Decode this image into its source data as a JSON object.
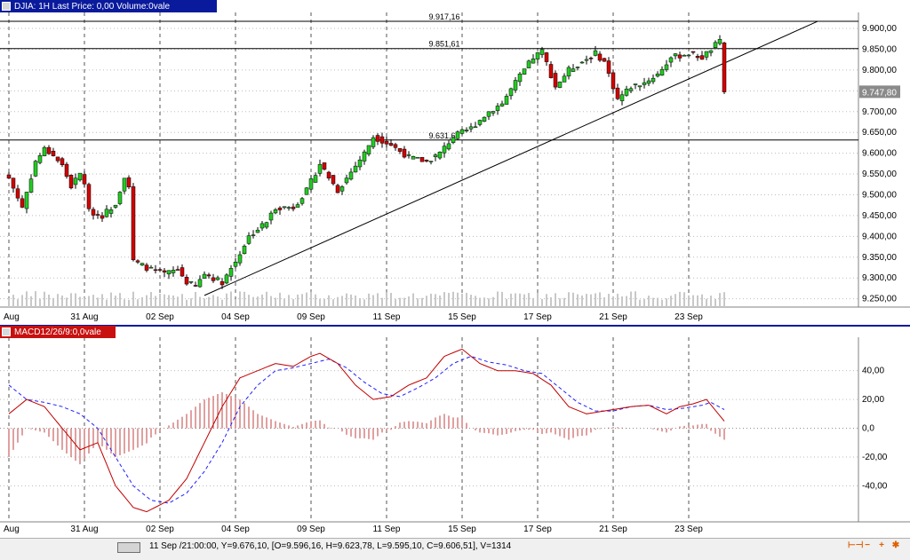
{
  "main_panel": {
    "title": "DJIA: 1H Last Price: 0,00 Volume:0vale"
  },
  "macd_panel": {
    "title": "MACD12/26/9:0,0vale"
  },
  "status": {
    "text": "11 Sep /21:00:00, Y=9.676,10, [O=9.596,16, H=9.623,78, L=9.595,10, C=9.606,51], V=1314"
  },
  "status_buttons": [
    {
      "icon": "zoom-out-icon",
      "glyph": "⊢⊣"
    },
    {
      "icon": "minus-icon",
      "glyph": "−"
    },
    {
      "icon": "plus-icon",
      "glyph": "+"
    },
    {
      "icon": "gear-icon",
      "glyph": "✱"
    }
  ],
  "chart_data": [
    {
      "type": "candlestick",
      "ylim": [
        9230,
        9930
      ],
      "yticks": [
        "9.900,00",
        "9.850,00",
        "9.800,00",
        "9.750,00",
        "9.700,00",
        "9.650,00",
        "9.600,00",
        "9.550,00",
        "9.500,00",
        "9.450,00",
        "9.400,00",
        "9.350,00",
        "9.300,00",
        "9.250,00"
      ],
      "ytick_values": [
        9900,
        9850,
        9800,
        9750,
        9700,
        9650,
        9600,
        9550,
        9500,
        9450,
        9400,
        9350,
        9300,
        9250
      ],
      "xticks": [
        "Aug",
        "31 Aug",
        "02 Sep",
        "04 Sep",
        "09 Sep",
        "11 Sep",
        "15 Sep",
        "17 Sep",
        "21 Sep",
        "23 Sep"
      ],
      "xtick_index": [
        0,
        17,
        34,
        51,
        68,
        85,
        102,
        119,
        136,
        153
      ],
      "n_bars": 162,
      "last_price_label": "9.747,80",
      "last_price": 9747.8,
      "horizontal_levels": [
        {
          "value": 9917.16,
          "label": "9.917,16"
        },
        {
          "value": 9851.61,
          "label": "9.851,61"
        },
        {
          "value": 9631.69,
          "label": "9.631,69"
        }
      ],
      "trendline": {
        "from": {
          "bar": 44,
          "value": 9258
        },
        "to": {
          "bar": 182,
          "value": 9917
        }
      },
      "close_anchors": [
        [
          0,
          9540
        ],
        [
          3,
          9470
        ],
        [
          6,
          9580
        ],
        [
          8,
          9610
        ],
        [
          10,
          9595
        ],
        [
          12,
          9570
        ],
        [
          14,
          9520
        ],
        [
          16,
          9550
        ],
        [
          17,
          9530
        ],
        [
          18,
          9460
        ],
        [
          21,
          9450
        ],
        [
          24,
          9480
        ],
        [
          26,
          9545
        ],
        [
          27,
          9520
        ],
        [
          28,
          9340
        ],
        [
          32,
          9320
        ],
        [
          35,
          9310
        ],
        [
          38,
          9320
        ],
        [
          40,
          9290
        ],
        [
          42,
          9280
        ],
        [
          44,
          9310
        ],
        [
          48,
          9290
        ],
        [
          51,
          9340
        ],
        [
          54,
          9400
        ],
        [
          58,
          9435
        ],
        [
          60,
          9470
        ],
        [
          64,
          9470
        ],
        [
          67,
          9510
        ],
        [
          70,
          9575
        ],
        [
          74,
          9510
        ],
        [
          78,
          9570
        ],
        [
          80,
          9600
        ],
        [
          82,
          9640
        ],
        [
          86,
          9620
        ],
        [
          90,
          9590
        ],
        [
          94,
          9580
        ],
        [
          97,
          9600
        ],
        [
          100,
          9640
        ],
        [
          104,
          9660
        ],
        [
          108,
          9700
        ],
        [
          111,
          9720
        ],
        [
          114,
          9770
        ],
        [
          118,
          9830
        ],
        [
          120,
          9845
        ],
        [
          123,
          9760
        ],
        [
          126,
          9800
        ],
        [
          129,
          9820
        ],
        [
          132,
          9840
        ],
        [
          134,
          9820
        ],
        [
          137,
          9730
        ],
        [
          140,
          9760
        ],
        [
          143,
          9770
        ],
        [
          146,
          9790
        ],
        [
          149,
          9830
        ],
        [
          153,
          9840
        ],
        [
          156,
          9830
        ],
        [
          159,
          9860
        ],
        [
          160,
          9868
        ],
        [
          161,
          9748
        ]
      ]
    },
    {
      "type": "line",
      "name": "MACD",
      "ylim": [
        -65,
        62
      ],
      "yticks": [
        "40,00",
        "20,00",
        "0,0",
        "-20,00",
        "-40,00"
      ],
      "ytick_values": [
        40,
        20,
        0,
        -20,
        -40
      ],
      "macd_anchors": [
        [
          0,
          10
        ],
        [
          4,
          20
        ],
        [
          8,
          15
        ],
        [
          12,
          0
        ],
        [
          16,
          -15
        ],
        [
          20,
          -10
        ],
        [
          24,
          -40
        ],
        [
          28,
          -55
        ],
        [
          31,
          -58
        ],
        [
          36,
          -50
        ],
        [
          40,
          -35
        ],
        [
          44,
          -10
        ],
        [
          48,
          15
        ],
        [
          52,
          35
        ],
        [
          56,
          40
        ],
        [
          60,
          45
        ],
        [
          64,
          43
        ],
        [
          68,
          50
        ],
        [
          70,
          52
        ],
        [
          74,
          45
        ],
        [
          78,
          30
        ],
        [
          82,
          20
        ],
        [
          86,
          22
        ],
        [
          90,
          30
        ],
        [
          94,
          35
        ],
        [
          98,
          50
        ],
        [
          102,
          55
        ],
        [
          106,
          45
        ],
        [
          110,
          40
        ],
        [
          114,
          40
        ],
        [
          118,
          38
        ],
        [
          122,
          30
        ],
        [
          126,
          15
        ],
        [
          130,
          10
        ],
        [
          134,
          12
        ],
        [
          136,
          13
        ],
        [
          140,
          15
        ],
        [
          144,
          16
        ],
        [
          148,
          10
        ],
        [
          151,
          15
        ],
        [
          154,
          17
        ],
        [
          157,
          20
        ],
        [
          161,
          5
        ]
      ],
      "signal_anchors": [
        [
          0,
          30
        ],
        [
          4,
          20
        ],
        [
          8,
          18
        ],
        [
          12,
          15
        ],
        [
          16,
          10
        ],
        [
          20,
          0
        ],
        [
          24,
          -20
        ],
        [
          28,
          -40
        ],
        [
          32,
          -50
        ],
        [
          36,
          -52
        ],
        [
          40,
          -45
        ],
        [
          44,
          -30
        ],
        [
          48,
          -10
        ],
        [
          52,
          15
        ],
        [
          56,
          30
        ],
        [
          60,
          40
        ],
        [
          64,
          42
        ],
        [
          68,
          45
        ],
        [
          72,
          48
        ],
        [
          76,
          42
        ],
        [
          80,
          32
        ],
        [
          84,
          24
        ],
        [
          88,
          22
        ],
        [
          92,
          28
        ],
        [
          96,
          35
        ],
        [
          100,
          45
        ],
        [
          104,
          50
        ],
        [
          108,
          46
        ],
        [
          112,
          44
        ],
        [
          116,
          40
        ],
        [
          120,
          38
        ],
        [
          124,
          28
        ],
        [
          128,
          18
        ],
        [
          132,
          12
        ],
        [
          136,
          12
        ],
        [
          140,
          15
        ],
        [
          144,
          16
        ],
        [
          148,
          13
        ],
        [
          152,
          14
        ],
        [
          156,
          16
        ],
        [
          158,
          18
        ],
        [
          161,
          13
        ]
      ]
    }
  ],
  "colors": {
    "up": "#22cc22",
    "down": "#d40000",
    "macd": "#c00000",
    "signal": "#2020ff",
    "hist": "#c04040",
    "title_bar": "#0a1a9c"
  }
}
